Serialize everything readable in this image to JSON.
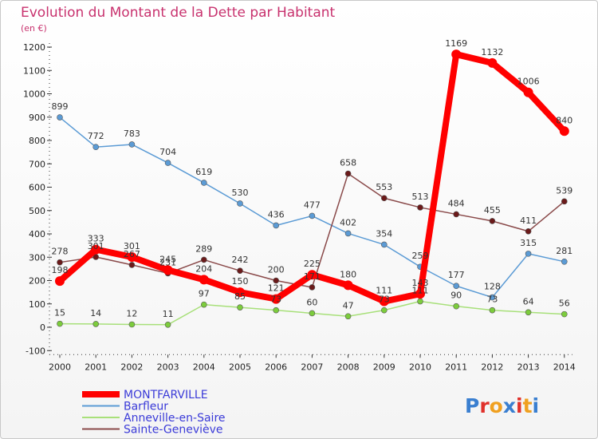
{
  "chart_data": {
    "type": "line",
    "title": "Evolution du Montant de la Dette par Habitant",
    "subtitle": "(en €)",
    "x": [
      "2000",
      "2001",
      "2002",
      "2003",
      "2004",
      "2005",
      "2006",
      "2007",
      "2008",
      "2009",
      "2010",
      "2011",
      "2012",
      "2013",
      "2014"
    ],
    "ylim": [
      -100,
      1200
    ],
    "yticks": [
      -100,
      0,
      100,
      200,
      300,
      400,
      500,
      600,
      700,
      800,
      900,
      1000,
      1100,
      1200
    ],
    "grid": false,
    "legend_position": "bottom-left",
    "series": [
      {
        "name": "Barfleur",
        "color": "#5b9bd5",
        "dot": "#5b9bd5",
        "values": [
          899,
          772,
          783,
          704,
          619,
          530,
          436,
          477,
          402,
          354,
          259,
          177,
          128,
          315,
          281
        ]
      },
      {
        "name": "Anneville-en-Saire",
        "color": "#a8e07a",
        "dot": "#7ccc3c",
        "values": [
          15,
          14,
          12,
          11,
          97,
          85,
          73,
          60,
          47,
          73,
          111,
          90,
          73,
          64,
          56
        ]
      },
      {
        "name": "Sainte-Geneviève",
        "color": "#8a4a4a",
        "dot": "#6b1a1a",
        "values": [
          278,
          301,
          267,
          231,
          289,
          242,
          200,
          171,
          658,
          553,
          513,
          484,
          455,
          411,
          539
        ]
      },
      {
        "name": "MONTFARVILLE",
        "color": "#ff0000",
        "dot": "#ff0000",
        "values": [
          198,
          333,
          301,
          245,
          204,
          150,
          121,
          225,
          180,
          111,
          143,
          1169,
          1132,
          1006,
          840
        ]
      }
    ],
    "data_labels": {
      "Barfleur": [
        "899",
        "772",
        "783",
        "704",
        "619",
        "530",
        "436",
        "477",
        "402",
        "354",
        "259",
        "177",
        "128",
        "315",
        "281"
      ],
      "Anneville-en-Saire": [
        "15",
        "14",
        "12",
        "11",
        "97",
        "85",
        "73",
        "60",
        "47",
        "73",
        "111",
        "90",
        "73",
        "64",
        "56"
      ],
      "Sainte-Geneviève": [
        "278",
        "301",
        "267",
        "231",
        "289",
        "242",
        "200",
        "171",
        "658",
        "553",
        "513",
        "484",
        "455",
        "411",
        "539"
      ],
      "MONTFARVILLE": [
        "198",
        "333",
        "301",
        "245",
        "204",
        "150",
        "121",
        "225",
        "180",
        "111",
        "143",
        "1169",
        "1132",
        "1006",
        "840"
      ]
    }
  },
  "legend": [
    {
      "label": "MONTFARVILLE",
      "color": "#ff0000"
    },
    {
      "label": "Barfleur",
      "color": "#5b9bd5"
    },
    {
      "label": "Anneville-en-Saire",
      "color": "#a8e07a"
    },
    {
      "label": "Sainte-Geneviève",
      "color": "#8a4a4a"
    }
  ],
  "brand": {
    "text": "Proxiti",
    "letters": [
      "P",
      "r",
      "o",
      "x",
      "i",
      "t",
      "i"
    ],
    "colors": [
      "#3a7fd0",
      "#e0302a",
      "#f0a020",
      "#3a7fd0",
      "#e0302a",
      "#f0a020",
      "#3a7fd0"
    ]
  }
}
